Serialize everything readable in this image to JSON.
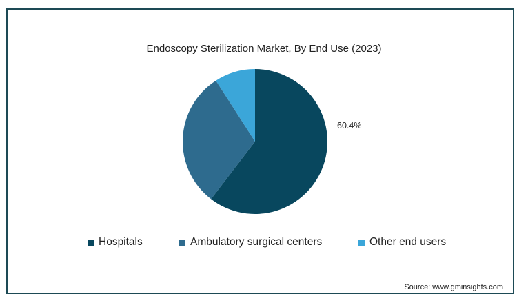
{
  "chart_data": {
    "type": "pie",
    "title": "Endoscopy Sterilization Market, By End Use (2023)",
    "slices": [
      {
        "name": "Hospitals",
        "value": 60.4,
        "color": "#08475e",
        "label": "60.4%"
      },
      {
        "name": "Ambulatory surgical centers",
        "value": 30.5,
        "color": "#2e6b8e",
        "label": ""
      },
      {
        "name": "Other end users",
        "value": 9.1,
        "color": "#3ba6d9",
        "label": ""
      }
    ],
    "legend_position": "bottom"
  },
  "source": "Source: www.gminsights.com"
}
